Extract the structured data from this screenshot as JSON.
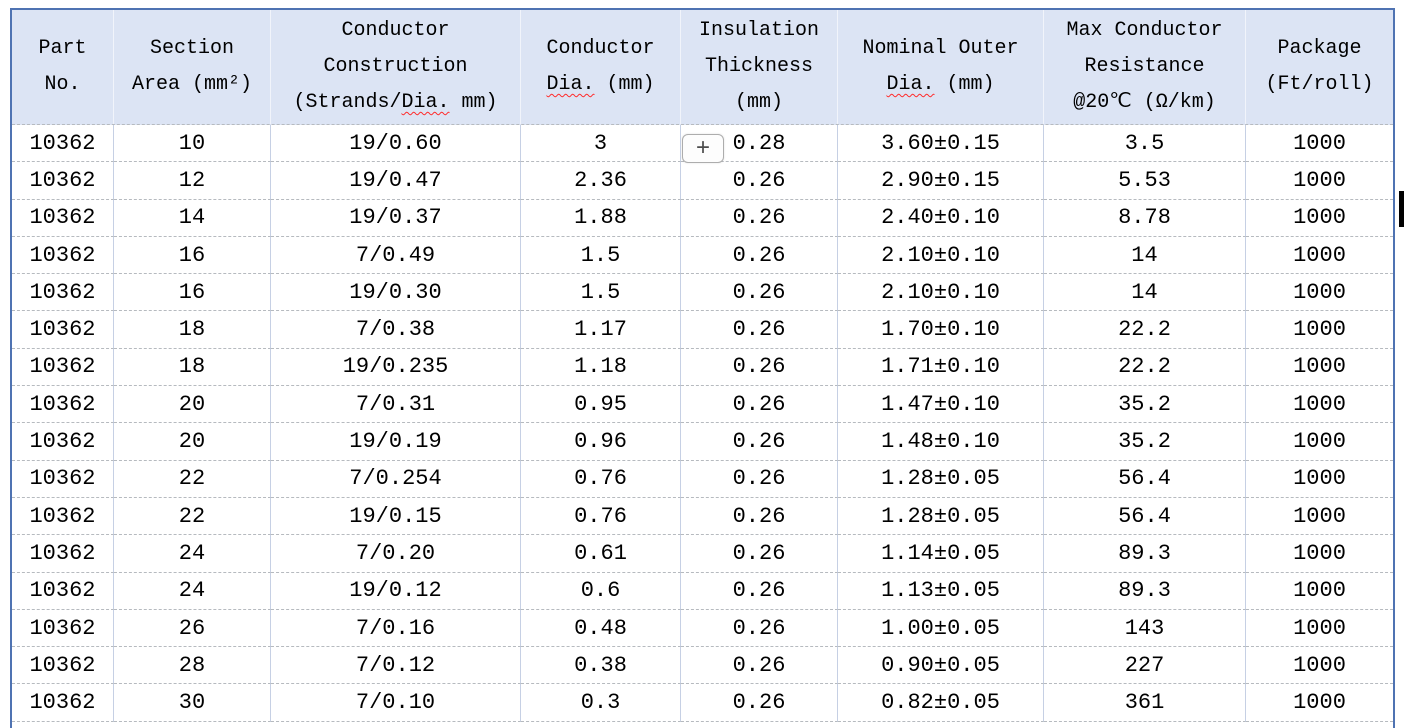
{
  "table": {
    "columns": [
      {
        "id": "part-no",
        "lines": [
          "Part",
          "No."
        ]
      },
      {
        "id": "section-area",
        "lines": [
          "Section",
          "Area (mm²)"
        ]
      },
      {
        "id": "conductor-construction",
        "lines": [
          "Conductor",
          "Construction",
          {
            "pre": "(Strands/",
            "wavy": "Dia.",
            "post": " mm)"
          }
        ]
      },
      {
        "id": "conductor-dia",
        "lines": [
          "Conductor",
          {
            "pre": "",
            "wavy": "Dia.",
            "post": " (mm)"
          }
        ]
      },
      {
        "id": "insulation-thickness",
        "lines": [
          "Insulation",
          "Thickness",
          "(mm)"
        ]
      },
      {
        "id": "nominal-outer-dia",
        "lines": [
          "Nominal Outer",
          {
            "pre": "",
            "wavy": "Dia.",
            "post": " (mm)"
          }
        ]
      },
      {
        "id": "max-conductor-resistance",
        "lines": [
          "Max Conductor",
          "Resistance",
          "@20℃ (Ω/km)"
        ]
      },
      {
        "id": "package",
        "lines": [
          "Package",
          "(Ft/roll)"
        ]
      }
    ],
    "rows": [
      [
        "10362",
        "10",
        "19/0.60",
        "3",
        "0.28",
        "3.60±0.15",
        "3.5",
        "1000"
      ],
      [
        "10362",
        "12",
        "19/0.47",
        "2.36",
        "0.26",
        "2.90±0.15",
        "5.53",
        "1000"
      ],
      [
        "10362",
        "14",
        "19/0.37",
        "1.88",
        "0.26",
        "2.40±0.10",
        "8.78",
        "1000"
      ],
      [
        "10362",
        "16",
        "7/0.49",
        "1.5",
        "0.26",
        "2.10±0.10",
        "14",
        "1000"
      ],
      [
        "10362",
        "16",
        "19/0.30",
        "1.5",
        "0.26",
        "2.10±0.10",
        "14",
        "1000"
      ],
      [
        "10362",
        "18",
        "7/0.38",
        "1.17",
        "0.26",
        "1.70±0.10",
        "22.2",
        "1000"
      ],
      [
        "10362",
        "18",
        "19/0.235",
        "1.18",
        "0.26",
        "1.71±0.10",
        "22.2",
        "1000"
      ],
      [
        "10362",
        "20",
        "7/0.31",
        "0.95",
        "0.26",
        "1.47±0.10",
        "35.2",
        "1000"
      ],
      [
        "10362",
        "20",
        "19/0.19",
        "0.96",
        "0.26",
        "1.48±0.10",
        "35.2",
        "1000"
      ],
      [
        "10362",
        "22",
        "7/0.254",
        "0.76",
        "0.26",
        "1.28±0.05",
        "56.4",
        "1000"
      ],
      [
        "10362",
        "22",
        "19/0.15",
        "0.76",
        "0.26",
        "1.28±0.05",
        "56.4",
        "1000"
      ],
      [
        "10362",
        "24",
        "7/0.20",
        "0.61",
        "0.26",
        "1.14±0.05",
        "89.3",
        "1000"
      ],
      [
        "10362",
        "24",
        "19/0.12",
        "0.6",
        "0.26",
        "1.13±0.05",
        "89.3",
        "1000"
      ],
      [
        "10362",
        "26",
        "7/0.16",
        "0.48",
        "0.26",
        "1.00±0.05",
        "143",
        "1000"
      ],
      [
        "10362",
        "28",
        "7/0.12",
        "0.38",
        "0.26",
        "0.90±0.05",
        "227",
        "1000"
      ],
      [
        "10362",
        "30",
        "7/0.10",
        "0.3",
        "0.26",
        "0.82±0.05",
        "361",
        "1000"
      ]
    ]
  },
  "overlay": {
    "insert_button_label": "+"
  },
  "colors": {
    "header_fill": "#dce4f4",
    "outer_border": "#4f73b2",
    "body_column_border": "#c6d0e4",
    "row_dashed_border": "#b6babf",
    "spellcheck_squiggle": "#ff2a2a",
    "text": "#000000"
  }
}
